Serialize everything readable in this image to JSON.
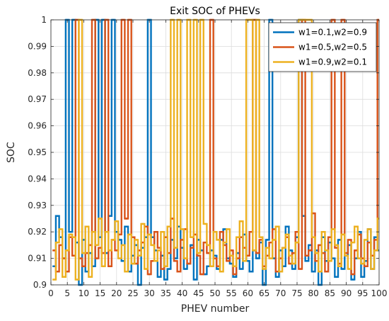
{
  "chart_data": {
    "type": "line",
    "title": "Exit SOC of PHEVs",
    "xlabel": "PHEV number",
    "ylabel": "SOC",
    "xlim": [
      0,
      100
    ],
    "ylim": [
      0.9,
      1.0
    ],
    "xticks": [
      0,
      5,
      10,
      15,
      20,
      25,
      30,
      35,
      40,
      45,
      50,
      55,
      60,
      65,
      70,
      75,
      80,
      85,
      90,
      95,
      100
    ],
    "yticks": [
      0.9,
      0.91,
      0.92,
      0.93,
      0.94,
      0.95,
      0.96,
      0.97,
      0.98,
      0.99,
      1
    ],
    "grid": true,
    "step": true,
    "legend_position": "top-right",
    "series": [
      {
        "name": "w1=0.1,w2=0.9",
        "color": "#0072BD",
        "x": [
          1,
          2,
          3,
          4,
          5,
          6,
          7,
          8,
          9,
          10,
          11,
          12,
          13,
          14,
          15,
          16,
          17,
          18,
          19,
          20,
          21,
          22,
          23,
          24,
          25,
          26,
          27,
          28,
          29,
          30,
          31,
          32,
          33,
          34,
          35,
          36,
          37,
          38,
          39,
          40,
          41,
          42,
          43,
          44,
          45,
          46,
          47,
          48,
          49,
          50,
          51,
          52,
          53,
          54,
          55,
          56,
          57,
          58,
          59,
          60,
          61,
          62,
          63,
          64,
          65,
          66,
          67,
          68,
          69,
          70,
          71,
          72,
          73,
          74,
          75,
          76,
          77,
          78,
          79,
          80,
          81,
          82,
          83,
          84,
          85,
          86,
          87,
          88,
          89,
          90,
          91,
          92,
          93,
          94,
          95,
          96,
          97,
          98,
          99,
          100
        ],
        "y": [
          0.907,
          0.926,
          0.918,
          0.91,
          1.0,
          0.92,
          1.0,
          0.916,
          0.9,
          0.917,
          0.905,
          0.912,
          0.907,
          1.0,
          0.918,
          1.0,
          0.912,
          0.926,
          1.0,
          0.92,
          0.917,
          0.909,
          0.922,
          0.905,
          0.911,
          0.915,
          0.9,
          0.914,
          0.918,
          1.0,
          0.918,
          0.913,
          0.903,
          0.911,
          0.902,
          0.906,
          0.917,
          0.91,
          0.922,
          0.914,
          0.906,
          0.908,
          0.915,
          0.902,
          0.917,
          0.913,
          0.904,
          0.907,
          0.913,
          0.911,
          0.906,
          0.917,
          0.921,
          0.91,
          0.908,
          0.903,
          0.912,
          0.906,
          0.919,
          0.909,
          0.905,
          0.913,
          0.91,
          0.916,
          0.9,
          0.917,
          1.0,
          0.91,
          0.903,
          0.913,
          0.907,
          0.922,
          0.913,
          0.906,
          0.918,
          1.0,
          0.926,
          0.909,
          0.915,
          0.905,
          0.913,
          0.9,
          0.918,
          0.909,
          0.916,
          0.91,
          0.903,
          0.917,
          0.906,
          0.911,
          0.915,
          0.902,
          0.91,
          0.92,
          0.903,
          0.909,
          0.921,
          0.906,
          0.918,
          0.913
        ]
      },
      {
        "name": "w1=0.5,w2=0.5",
        "color": "#D95319",
        "x": [
          1,
          2,
          3,
          4,
          5,
          6,
          7,
          8,
          9,
          10,
          11,
          12,
          13,
          14,
          15,
          16,
          17,
          18,
          19,
          20,
          21,
          22,
          23,
          24,
          25,
          26,
          27,
          28,
          29,
          30,
          31,
          32,
          33,
          34,
          35,
          36,
          37,
          38,
          39,
          40,
          41,
          42,
          43,
          44,
          45,
          46,
          47,
          48,
          49,
          50,
          51,
          52,
          53,
          54,
          55,
          56,
          57,
          58,
          59,
          60,
          61,
          62,
          63,
          64,
          65,
          66,
          67,
          68,
          69,
          70,
          71,
          72,
          73,
          74,
          75,
          76,
          77,
          78,
          79,
          80,
          81,
          82,
          83,
          84,
          85,
          86,
          87,
          88,
          89,
          90,
          91,
          92,
          93,
          94,
          95,
          96,
          97,
          98,
          99,
          100
        ],
        "y": [
          0.913,
          0.905,
          0.915,
          0.91,
          0.905,
          0.918,
          0.911,
          1.0,
          0.91,
          0.907,
          0.912,
          0.915,
          1.0,
          0.91,
          0.914,
          0.912,
          1.0,
          0.907,
          0.917,
          0.913,
          0.919,
          1.0,
          0.925,
          1.0,
          0.918,
          0.908,
          0.913,
          0.916,
          0.922,
          0.904,
          0.909,
          0.92,
          0.914,
          0.906,
          0.918,
          0.912,
          0.925,
          0.909,
          0.905,
          0.917,
          0.921,
          0.908,
          0.914,
          0.919,
          0.911,
          0.904,
          0.916,
          0.912,
          1.0,
          0.91,
          0.907,
          0.92,
          0.915,
          0.909,
          0.913,
          0.904,
          0.91,
          0.918,
          0.914,
          0.911,
          0.92,
          1.0,
          0.912,
          0.917,
          0.907,
          0.911,
          0.916,
          0.921,
          0.905,
          0.91,
          0.914,
          0.918,
          0.908,
          0.912,
          0.92,
          0.906,
          1.0,
          0.911,
          0.913,
          0.927,
          0.909,
          0.915,
          0.912,
          0.905,
          0.918,
          1.0,
          0.914,
          0.908,
          1.0,
          0.912,
          0.917,
          0.904,
          0.913,
          0.919,
          0.91,
          0.907,
          0.916,
          0.911,
          0.917,
          1.0
        ]
      },
      {
        "name": "w1=0.9,w2=0.1",
        "color": "#EDB120",
        "x": [
          1,
          2,
          3,
          4,
          5,
          6,
          7,
          8,
          9,
          10,
          11,
          12,
          13,
          14,
          15,
          16,
          17,
          18,
          19,
          20,
          21,
          22,
          23,
          24,
          25,
          26,
          27,
          28,
          29,
          30,
          31,
          32,
          33,
          34,
          35,
          36,
          37,
          38,
          39,
          40,
          41,
          42,
          43,
          44,
          45,
          46,
          47,
          48,
          49,
          50,
          51,
          52,
          53,
          54,
          55,
          56,
          57,
          58,
          59,
          60,
          61,
          62,
          63,
          64,
          65,
          66,
          67,
          68,
          69,
          70,
          71,
          72,
          73,
          74,
          75,
          76,
          77,
          78,
          79,
          80,
          81,
          82,
          83,
          84,
          85,
          86,
          87,
          88,
          89,
          90,
          91,
          92,
          93,
          94,
          95,
          96,
          97,
          98,
          99,
          100
        ],
        "y": [
          0.902,
          0.916,
          0.921,
          0.903,
          0.913,
          0.919,
          0.918,
          0.902,
          1.0,
          0.912,
          0.922,
          0.903,
          0.92,
          0.915,
          0.925,
          0.907,
          0.92,
          0.913,
          0.917,
          0.924,
          0.91,
          0.915,
          0.905,
          0.919,
          0.908,
          0.917,
          0.911,
          0.923,
          0.906,
          0.919,
          0.915,
          0.909,
          0.913,
          0.92,
          0.907,
          0.922,
          1.0,
          0.914,
          1.0,
          0.921,
          0.91,
          1.0,
          0.918,
          1.0,
          0.912,
          1.0,
          0.923,
          0.915,
          0.907,
          0.92,
          0.917,
          0.905,
          0.916,
          0.921,
          0.911,
          0.907,
          0.918,
          0.924,
          0.909,
          1.0,
          1.0,
          0.913,
          1.0,
          0.918,
          0.906,
          0.914,
          0.91,
          0.917,
          0.922,
          0.905,
          0.914,
          0.919,
          0.911,
          0.908,
          0.916,
          1.0,
          1.0,
          1.0,
          1.0,
          0.918,
          0.912,
          0.905,
          0.92,
          0.913,
          0.909,
          0.921,
          0.915,
          0.907,
          0.919,
          0.911,
          0.906,
          0.916,
          0.922,
          0.91,
          0.908,
          0.917,
          0.921,
          0.906,
          0.913,
          0.925
        ]
      }
    ]
  }
}
